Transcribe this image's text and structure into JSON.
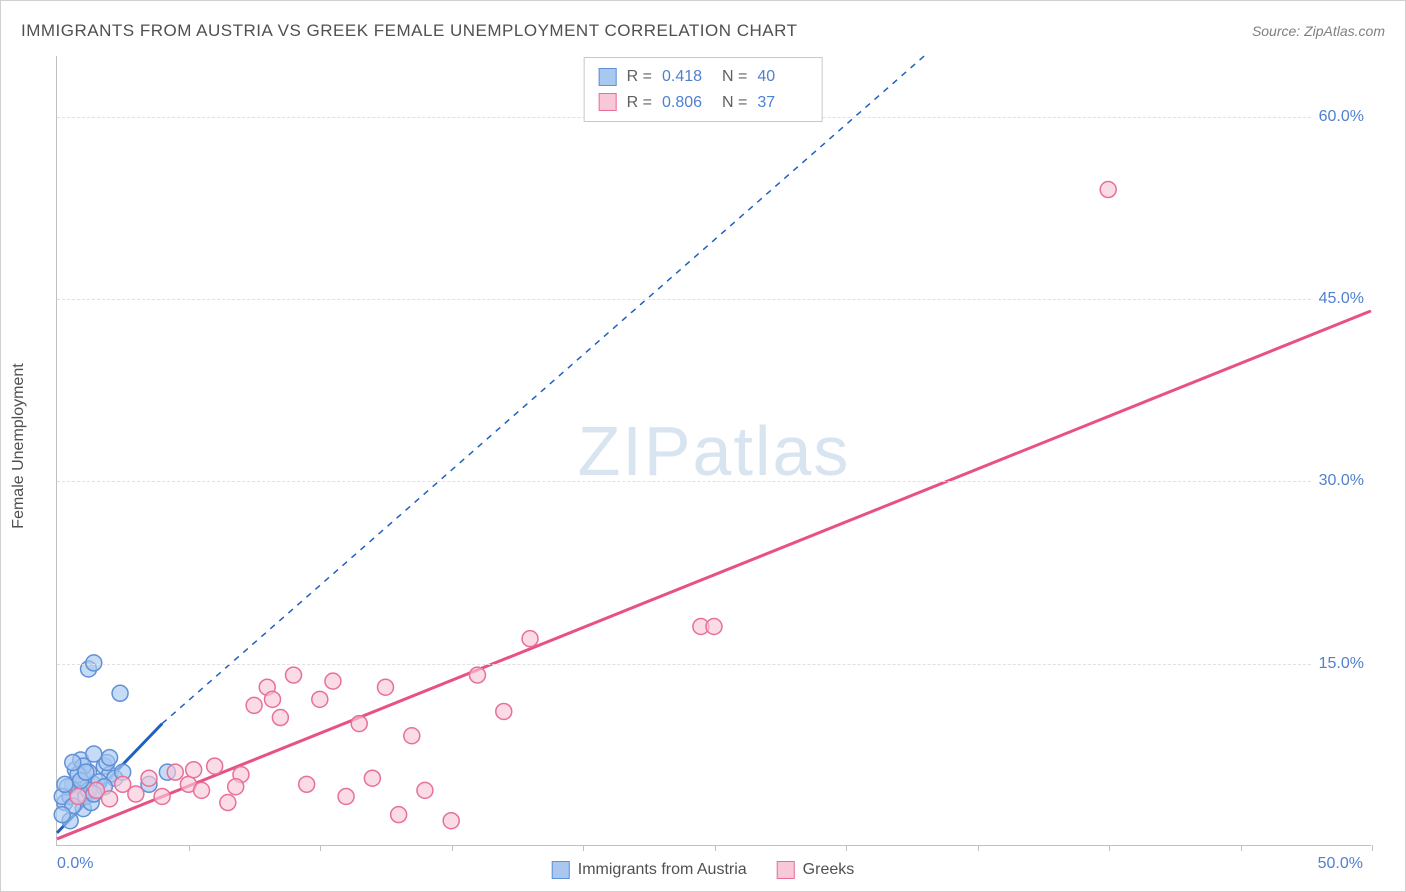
{
  "title": "IMMIGRANTS FROM AUSTRIA VS GREEK FEMALE UNEMPLOYMENT CORRELATION CHART",
  "source": "Source: ZipAtlas.com",
  "ylabel": "Female Unemployment",
  "watermark": "ZIPatlas",
  "chart": {
    "type": "scatter",
    "xlim": [
      0,
      50
    ],
    "ylim": [
      0,
      65
    ],
    "x_origin_label": "0.0%",
    "x_end_label": "50.0%",
    "y_ticks": [
      15,
      30,
      45,
      60
    ],
    "y_tick_labels": [
      "15.0%",
      "30.0%",
      "45.0%",
      "60.0%"
    ],
    "x_minor_ticks": [
      5,
      10,
      15,
      20,
      25,
      30,
      35,
      40,
      45,
      50
    ],
    "background_color": "#ffffff",
    "grid_color": "#e0e0e0",
    "axis_color": "#c0c0c0",
    "label_color": "#5080d0"
  },
  "series": [
    {
      "name": "Immigrants from Austria",
      "key": "austria",
      "R": "0.418",
      "N": "40",
      "marker_color_fill": "#a8c8f0",
      "marker_color_stroke": "#6090d8",
      "marker_opacity": 0.65,
      "marker_radius": 8,
      "trend_color": "#2060c0",
      "trend_style_solid": [
        [
          0,
          1
        ],
        [
          4,
          10
        ]
      ],
      "trend_style_dashed": [
        [
          4,
          10
        ],
        [
          33,
          65
        ]
      ],
      "points": [
        [
          0.3,
          3.5
        ],
        [
          0.5,
          4.0
        ],
        [
          0.6,
          5.0
        ],
        [
          0.8,
          4.2
        ],
        [
          1.0,
          5.5
        ],
        [
          1.2,
          6.0
        ],
        [
          1.4,
          5.0
        ],
        [
          1.0,
          3.0
        ],
        [
          1.5,
          4.5
        ],
        [
          1.8,
          6.5
        ],
        [
          2.0,
          5.8
        ],
        [
          0.4,
          4.8
        ],
        [
          0.7,
          6.2
        ],
        [
          0.9,
          7.0
        ],
        [
          1.1,
          4.0
        ],
        [
          1.3,
          3.5
        ],
        [
          1.6,
          5.2
        ],
        [
          1.9,
          6.8
        ],
        [
          2.2,
          5.5
        ],
        [
          2.5,
          6.0
        ],
        [
          0.2,
          4.0
        ],
        [
          0.6,
          3.2
        ],
        [
          1.0,
          6.5
        ],
        [
          1.4,
          7.5
        ],
        [
          0.5,
          2.0
        ],
        [
          1.8,
          4.8
        ],
        [
          2.0,
          7.2
        ],
        [
          0.3,
          5.0
        ],
        [
          0.8,
          5.8
        ],
        [
          1.2,
          4.5
        ],
        [
          1.2,
          14.5
        ],
        [
          1.4,
          15.0
        ],
        [
          2.4,
          12.5
        ],
        [
          3.5,
          5.0
        ],
        [
          4.2,
          6.0
        ],
        [
          0.2,
          2.5
        ],
        [
          0.6,
          6.8
        ],
        [
          0.9,
          5.3
        ],
        [
          1.1,
          6.0
        ],
        [
          1.4,
          4.2
        ]
      ]
    },
    {
      "name": "Greeks",
      "key": "greeks",
      "R": "0.806",
      "N": "37",
      "marker_color_fill": "#f8c8d8",
      "marker_color_stroke": "#e87098",
      "marker_opacity": 0.65,
      "marker_radius": 8,
      "trend_color": "#e85088",
      "trend_style_solid": [
        [
          0,
          0.5
        ],
        [
          50,
          44
        ]
      ],
      "points": [
        [
          0.8,
          4.0
        ],
        [
          1.5,
          4.5
        ],
        [
          2.0,
          3.8
        ],
        [
          2.5,
          5.0
        ],
        [
          3.0,
          4.2
        ],
        [
          3.5,
          5.5
        ],
        [
          4.0,
          4.0
        ],
        [
          4.5,
          6.0
        ],
        [
          5.0,
          5.0
        ],
        [
          5.5,
          4.5
        ],
        [
          6.0,
          6.5
        ],
        [
          6.5,
          3.5
        ],
        [
          7.0,
          5.8
        ],
        [
          7.5,
          11.5
        ],
        [
          8.0,
          13.0
        ],
        [
          8.5,
          10.5
        ],
        [
          9.0,
          14.0
        ],
        [
          9.5,
          5.0
        ],
        [
          10.0,
          12.0
        ],
        [
          10.5,
          13.5
        ],
        [
          11.0,
          4.0
        ],
        [
          11.5,
          10.0
        ],
        [
          12.0,
          5.5
        ],
        [
          12.5,
          13.0
        ],
        [
          13.0,
          2.5
        ],
        [
          13.5,
          9.0
        ],
        [
          14.0,
          4.5
        ],
        [
          15.0,
          2.0
        ],
        [
          16.0,
          14.0
        ],
        [
          17.0,
          11.0
        ],
        [
          18.0,
          17.0
        ],
        [
          24.5,
          18.0
        ],
        [
          25.0,
          18.0
        ],
        [
          40.0,
          54.0
        ],
        [
          8.2,
          12.0
        ],
        [
          5.2,
          6.2
        ],
        [
          6.8,
          4.8
        ]
      ]
    }
  ],
  "legend_bottom": [
    {
      "label": "Immigrants from Austria",
      "swatch_fill": "#a8c8f0",
      "swatch_stroke": "#6090d8"
    },
    {
      "label": "Greeks",
      "swatch_fill": "#f8c8d8",
      "swatch_stroke": "#e87098"
    }
  ]
}
